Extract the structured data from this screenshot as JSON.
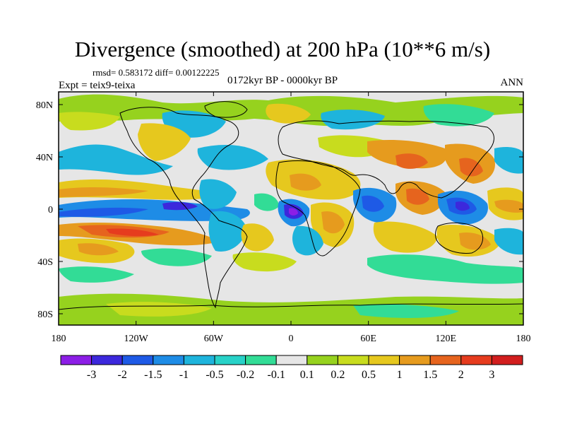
{
  "title": "Divergence (smoothed) at 200 hPa (10**6 m/s)",
  "stats_text": "rmsd= 0.583172 diff= 0.00122225",
  "period_text": "0172kyr BP - 0000kyr BP",
  "experiment_text": "Expt = teix9-teixa",
  "season_text": "ANN",
  "lat_ticks": [
    "80N",
    "40N",
    "0",
    "40S",
    "80S"
  ],
  "lon_ticks": [
    "180",
    "120W",
    "60W",
    "0",
    "60E",
    "120E",
    "180"
  ],
  "colorbar": {
    "colors": [
      "#8c1ee6",
      "#3c28dc",
      "#1e5ae6",
      "#1e8ce6",
      "#1eb4dc",
      "#28d2c8",
      "#32dc96",
      "#e6e6e6",
      "#96d21e",
      "#c8dc1e",
      "#e6c81e",
      "#e69b1e",
      "#e6641e",
      "#e63c1e",
      "#d21e1e"
    ],
    "labels": [
      "-3",
      "-2",
      "-1.5",
      "-1",
      "-0.5",
      "-0.2",
      "-0.1",
      "0.1",
      "0.2",
      "0.5",
      "1",
      "1.5",
      "2",
      "3"
    ]
  }
}
